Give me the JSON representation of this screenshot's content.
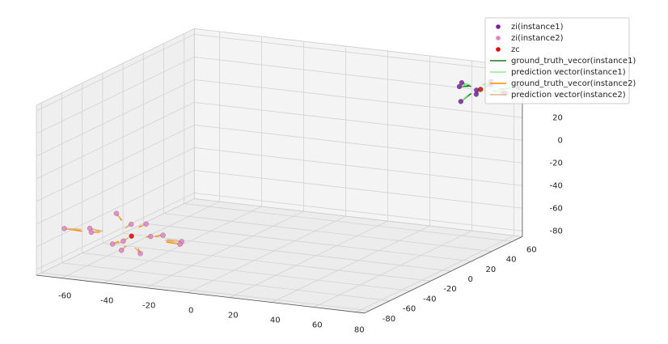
{
  "chart_data": {
    "type": "scatter3d",
    "xlim": [
      -72,
      84
    ],
    "ylim": [
      -85,
      70
    ],
    "zlim": [
      -85,
      65
    ],
    "xticks": [
      -60,
      -40,
      -20,
      0,
      20,
      40,
      60,
      80
    ],
    "yticks": [
      -80,
      -60,
      -40,
      -20,
      0,
      20,
      40,
      60
    ],
    "zticks": [
      -80,
      -60,
      -40,
      -20,
      0,
      20,
      40,
      60
    ],
    "grid": true,
    "legend": "upper right",
    "series": [
      {
        "name": "zi(instance1)",
        "color": "#7b1fa2",
        "marker": "o",
        "x": [
          55,
          60,
          64,
          68,
          72,
          75,
          80,
          84,
          62,
          70
        ],
        "y": [
          68,
          60,
          66,
          58,
          64,
          70,
          62,
          66,
          55,
          68
        ],
        "z": [
          42,
          50,
          38,
          46,
          52,
          40,
          44,
          48,
          36,
          47
        ]
      },
      {
        "name": "zi(instance2)",
        "color": "#e67fc4",
        "marker": "o",
        "x": [
          -65,
          -58,
          -50,
          -45,
          -40,
          -36,
          -30,
          -25,
          -20,
          -15,
          -10,
          -48,
          -33,
          -22
        ],
        "y": [
          -72,
          -60,
          -78,
          -66,
          -58,
          -74,
          -64,
          -80,
          -68,
          -60,
          -72,
          -56,
          -82,
          -76
        ],
        "z": [
          -48,
          -55,
          -42,
          -60,
          -45,
          -52,
          -40,
          -58,
          -46,
          -54,
          -50,
          -38,
          -56,
          -44
        ]
      },
      {
        "name": "zc",
        "color": "#e00000",
        "marker": "o",
        "x": [
          -35,
          68
        ],
        "y": [
          -68,
          62
        ],
        "z": [
          -50,
          45
        ]
      },
      {
        "name": "ground_truth_vecor(instance1)",
        "color": "#1a7a1a",
        "marker": "line",
        "u": [
          6,
          4,
          2,
          0,
          -2,
          -3,
          -6,
          -8,
          3,
          -1
        ],
        "v": [
          -3,
          1,
          -2,
          2,
          -1,
          -4,
          0,
          -2,
          4,
          -3
        ],
        "w": [
          3,
          -3,
          5,
          -1,
          -4,
          3,
          1,
          -2,
          6,
          -1
        ]
      },
      {
        "name": "prediction vector(instance1)",
        "color": "#90ee90",
        "marker": "line",
        "u": [
          5,
          3,
          3,
          1,
          -3,
          -2,
          -5,
          -7,
          2,
          -2
        ],
        "v": [
          -2,
          2,
          -1,
          1,
          -2,
          -3,
          1,
          -1,
          3,
          -2
        ],
        "w": [
          4,
          -2,
          4,
          0,
          -3,
          2,
          2,
          -3,
          5,
          0
        ]
      },
      {
        "name": "ground_truth_vecor(instance2)",
        "color": "#ff8c00",
        "marker": "line",
        "u": [
          8,
          5,
          4,
          3,
          -1,
          0,
          -3,
          -3,
          -4,
          -6,
          -7,
          4,
          0,
          -3
        ],
        "v": [
          1,
          -2,
          3,
          0,
          -3,
          2,
          -1,
          4,
          0,
          -2,
          1,
          -3,
          4,
          2
        ],
        "w": [
          -1,
          2,
          -3,
          3,
          -2,
          1,
          -3,
          2,
          -2,
          1,
          0,
          -4,
          2,
          -2
        ]
      },
      {
        "name": "prediction vector(instance2)",
        "color": "#deb887",
        "marker": "line",
        "u": [
          7,
          6,
          3,
          4,
          -2,
          1,
          -2,
          -4,
          -3,
          -5,
          -8,
          3,
          1,
          -2
        ],
        "v": [
          2,
          -1,
          2,
          1,
          -2,
          3,
          0,
          3,
          1,
          -3,
          2,
          -2,
          3,
          3
        ],
        "w": [
          0,
          3,
          -2,
          2,
          -3,
          2,
          -2,
          3,
          -1,
          2,
          1,
          -3,
          3,
          -1
        ]
      }
    ]
  }
}
